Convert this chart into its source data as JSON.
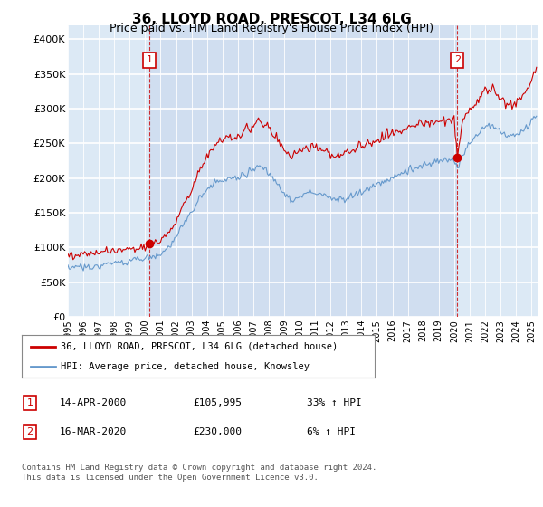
{
  "title": "36, LLOYD ROAD, PRESCOT, L34 6LG",
  "subtitle": "Price paid vs. HM Land Registry's House Price Index (HPI)",
  "background_color": "#ffffff",
  "plot_bg_color": "#dce9f5",
  "ylim": [
    0,
    420000
  ],
  "yticks": [
    0,
    50000,
    100000,
    150000,
    200000,
    250000,
    300000,
    350000,
    400000
  ],
  "red_line_color": "#cc0000",
  "blue_line_color": "#6699cc",
  "vline_color": "#cc0000",
  "shade_color": "#c8d8ee",
  "legend_label_red": "36, LLOYD ROAD, PRESCOT, L34 6LG (detached house)",
  "legend_label_blue": "HPI: Average price, detached house, Knowsley",
  "annotation1_label": "1",
  "annotation1_date": "14-APR-2000",
  "annotation1_price": "£105,995",
  "annotation1_hpi": "33% ↑ HPI",
  "annotation2_label": "2",
  "annotation2_date": "16-MAR-2020",
  "annotation2_price": "£230,000",
  "annotation2_hpi": "6% ↑ HPI",
  "footer": "Contains HM Land Registry data © Crown copyright and database right 2024.\nThis data is licensed under the Open Government Licence v3.0.",
  "vline1_x": 2000.29,
  "vline2_x": 2020.21,
  "sale1_y": 105995,
  "sale2_y": 230000,
  "xlim_left": 1995.0,
  "xlim_right": 2025.4
}
